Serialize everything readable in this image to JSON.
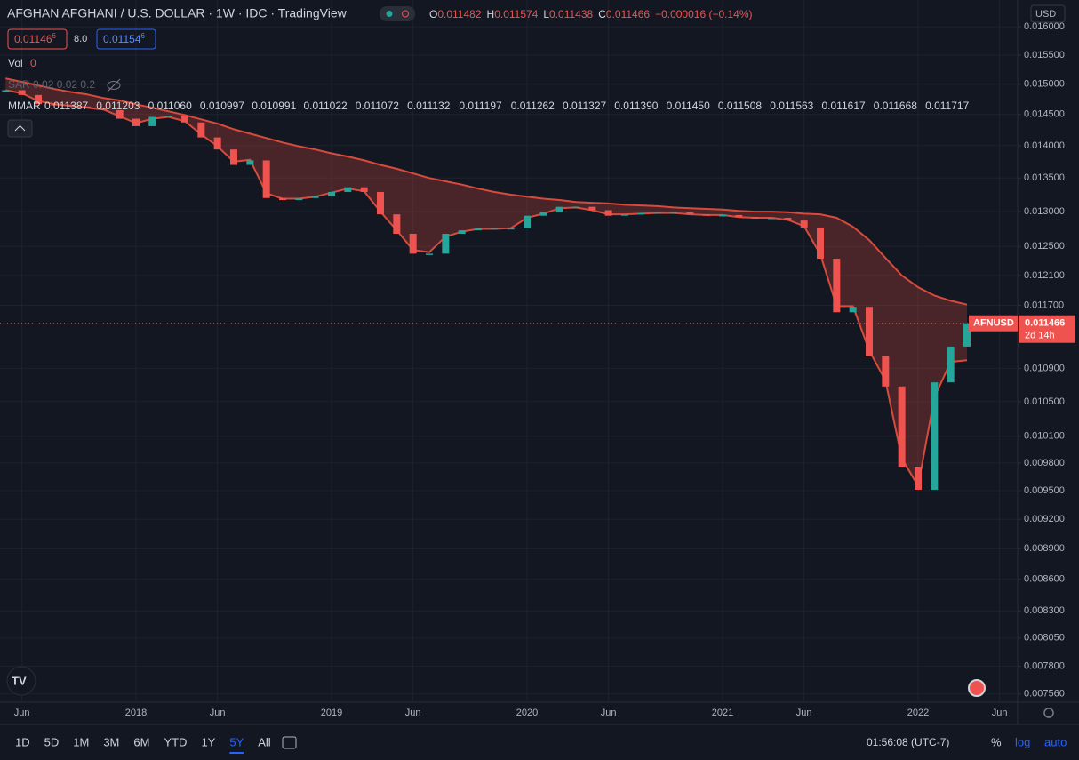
{
  "header": {
    "title": "AFGHAN AFGHANI / U.S. DOLLAR · 1W · IDC · TradingView",
    "ohlc": [
      {
        "k": "O",
        "v": "0.011482"
      },
      {
        "k": "H",
        "v": "0.011574"
      },
      {
        "k": "L",
        "v": "0.011438"
      },
      {
        "k": "C",
        "v": "0.011466"
      }
    ],
    "change": "−0.000016 (−0.14%)",
    "bid": {
      "main": "0.01146",
      "sup": "6"
    },
    "spread": "8.0",
    "ask": {
      "main": "0.01154",
      "sup": "6"
    }
  },
  "indicators": {
    "vol_label": "Vol",
    "vol_value": "0",
    "sar": "SAR 0.02 0.02 0.2",
    "mmar_label": "MMAR",
    "mmar_values": [
      {
        "v": "0.011387",
        "c": "#4caf50"
      },
      {
        "v": "0.011203",
        "c": "#4caf50"
      },
      {
        "v": "0.011060",
        "c": "#4caf50"
      },
      {
        "v": "0.010997",
        "c": "#4caf50"
      },
      {
        "v": "0.010991",
        "c": "#4caf50"
      },
      {
        "v": "0.011022",
        "c": "#4caf50"
      },
      {
        "v": "0.011072",
        "c": "#4caf50"
      },
      {
        "v": "0.011132",
        "c": "#4caf50"
      },
      {
        "v": "0.011197",
        "c": "#4caf50"
      },
      {
        "v": "0.011262",
        "c": "#4caf50"
      },
      {
        "v": "0.011327",
        "c": "#4caf50"
      },
      {
        "v": "0.011390",
        "c": "#4caf50"
      },
      {
        "v": "0.011450",
        "c": "#4caf50"
      },
      {
        "v": "0.011508",
        "c": "#ef5350"
      },
      {
        "v": "0.011563",
        "c": "#ef5350"
      },
      {
        "v": "0.011617",
        "c": "#ef5350"
      },
      {
        "v": "0.011668",
        "c": "#ef5350"
      },
      {
        "v": "0.011717",
        "c": "#ef5350"
      }
    ]
  },
  "currency": "USD",
  "toolbar": {
    "ranges": [
      "1D",
      "5D",
      "1M",
      "3M",
      "6M",
      "YTD",
      "1Y",
      "5Y",
      "All"
    ],
    "active_range": 7,
    "clock": "01:56:08 (UTC-7)",
    "percent": "%",
    "log": "log",
    "auto": "auto"
  },
  "chart_data": {
    "type": "candlestick",
    "log_scale": true,
    "grid": true,
    "color_up": "#26a69a",
    "color_down": "#ef5350",
    "symbol": "AFNUSD",
    "countdown": "2d 14h",
    "last_price": 0.011466,
    "x": [
      "2017-05",
      "2017-06",
      "2017-07",
      "2017-08",
      "2017-09",
      "2017-10",
      "2017-11",
      "2017-12",
      "2018-01",
      "2018-02",
      "2018-03",
      "2018-04",
      "2018-05",
      "2018-06",
      "2018-07",
      "2018-08",
      "2018-09",
      "2018-10",
      "2018-11",
      "2018-12",
      "2019-01",
      "2019-02",
      "2019-03",
      "2019-04",
      "2019-05",
      "2019-06",
      "2019-07",
      "2019-08",
      "2019-09",
      "2019-10",
      "2019-11",
      "2019-12",
      "2020-01",
      "2020-02",
      "2020-03",
      "2020-04",
      "2020-05",
      "2020-06",
      "2020-07",
      "2020-08",
      "2020-09",
      "2020-10",
      "2020-11",
      "2020-12",
      "2021-01",
      "2021-02",
      "2021-03",
      "2021-04",
      "2021-05",
      "2021-06",
      "2021-07",
      "2021-08",
      "2021-09",
      "2021-10",
      "2021-11",
      "2021-12",
      "2022-01",
      "2022-02",
      "2022-03",
      "2022-04"
    ],
    "closes": [
      0.0149,
      0.01482,
      0.01467,
      0.01466,
      0.01463,
      0.0146,
      0.01457,
      0.01443,
      0.01431,
      0.01446,
      0.01448,
      0.01437,
      0.01413,
      0.01394,
      0.0137,
      0.01377,
      0.0132,
      0.01317,
      0.0132,
      0.01323,
      0.01329,
      0.01336,
      0.01329,
      0.01296,
      0.01268,
      0.0124,
      0.0124,
      0.01268,
      0.01273,
      0.01276,
      0.01276,
      0.01276,
      0.01294,
      0.01299,
      0.01307,
      0.01307,
      0.01302,
      0.01294,
      0.01296,
      0.01298,
      0.01299,
      0.01299,
      0.01296,
      0.01295,
      0.01295,
      0.01292,
      0.01291,
      0.01291,
      0.01287,
      0.01277,
      0.01233,
      0.01161,
      0.01168,
      0.01105,
      0.01068,
      0.00976,
      0.00951,
      0.01073,
      0.01117,
      0.011466
    ],
    "ribbon": {
      "color": "#d84b3c",
      "upper": [
        0.0151,
        0.01504,
        0.01498,
        0.01492,
        0.01487,
        0.01483,
        0.01477,
        0.01473,
        0.014667,
        0.01461,
        0.01455,
        0.01449,
        0.01442,
        0.01435,
        0.01426,
        0.01419,
        0.01412,
        0.01405,
        0.01399,
        0.01394,
        0.01388,
        0.01383,
        0.01377,
        0.0137,
        0.01364,
        0.01357,
        0.0135,
        0.01345,
        0.0134,
        0.01334,
        0.01329,
        0.01325,
        0.01322,
        0.01319,
        0.01317,
        0.01314,
        0.01313,
        0.01312,
        0.0131,
        0.01309,
        0.01308,
        0.01306,
        0.01305,
        0.01304,
        0.01303,
        0.01301,
        0.013,
        0.013,
        0.01299,
        0.01297,
        0.01296,
        0.01291,
        0.01278,
        0.01259,
        0.01234,
        0.0121,
        0.01194,
        0.01183,
        0.01176,
        0.01171
      ],
      "lower": [
        0.0149,
        0.01485,
        0.01472,
        0.01467,
        0.01464,
        0.01461,
        0.01458,
        0.01447,
        0.01436,
        0.01443,
        0.01446,
        0.01439,
        0.01418,
        0.01399,
        0.01375,
        0.01378,
        0.01327,
        0.01319,
        0.01319,
        0.01322,
        0.01328,
        0.01334,
        0.0133,
        0.013,
        0.01273,
        0.01245,
        0.01242,
        0.01264,
        0.01271,
        0.01275,
        0.01275,
        0.01276,
        0.01291,
        0.01297,
        0.01305,
        0.01306,
        0.01302,
        0.01296,
        0.01296,
        0.01297,
        0.01298,
        0.01298,
        0.01296,
        0.01295,
        0.01295,
        0.01292,
        0.01291,
        0.01291,
        0.01288,
        0.01279,
        0.01239,
        0.01169,
        0.01169,
        0.01112,
        0.01075,
        0.00985,
        0.00955,
        0.01055,
        0.01098,
        0.011
      ]
    },
    "ylim": [
      0.00749,
      0.01649
    ],
    "yticks": [
      {
        "value": 0.016,
        "label": "0.016000"
      },
      {
        "value": 0.0155,
        "label": "0.015500"
      },
      {
        "value": 0.015,
        "label": "0.015000"
      },
      {
        "value": 0.0145,
        "label": "0.014500"
      },
      {
        "value": 0.014,
        "label": "0.014000"
      },
      {
        "value": 0.0135,
        "label": "0.013500"
      },
      {
        "value": 0.013,
        "label": "0.013000"
      },
      {
        "value": 0.0125,
        "label": "0.012500"
      },
      {
        "value": 0.0121,
        "label": "0.012100"
      },
      {
        "value": 0.0117,
        "label": "0.011700"
      },
      {
        "value": 0.0109,
        "label": "0.010900"
      },
      {
        "value": 0.0105,
        "label": "0.010500"
      },
      {
        "value": 0.0101,
        "label": "0.010100"
      },
      {
        "value": 0.0098,
        "label": "0.009800"
      },
      {
        "value": 0.0095,
        "label": "0.009500"
      },
      {
        "value": 0.0092,
        "label": "0.009200"
      },
      {
        "value": 0.0089,
        "label": "0.008900"
      },
      {
        "value": 0.0086,
        "label": "0.008600"
      },
      {
        "value": 0.0083,
        "label": "0.008300"
      },
      {
        "value": 0.00805,
        "label": "0.008050"
      },
      {
        "value": 0.0078,
        "label": "0.007800"
      },
      {
        "value": 0.00756,
        "label": "0.007560"
      }
    ],
    "xticks": [
      {
        "value": "2017-06",
        "label": "Jun"
      },
      {
        "value": "2018-01",
        "label": "2018"
      },
      {
        "value": "2018-06",
        "label": "Jun"
      },
      {
        "value": "2019-01",
        "label": "2019"
      },
      {
        "value": "2019-06",
        "label": "Jun"
      },
      {
        "value": "2020-01",
        "label": "2020"
      },
      {
        "value": "2020-06",
        "label": "Jun"
      },
      {
        "value": "2021-01",
        "label": "2021"
      },
      {
        "value": "2021-06",
        "label": "Jun"
      },
      {
        "value": "2022-01",
        "label": "2022"
      },
      {
        "value": "2022-06",
        "label": "Jun"
      }
    ]
  }
}
